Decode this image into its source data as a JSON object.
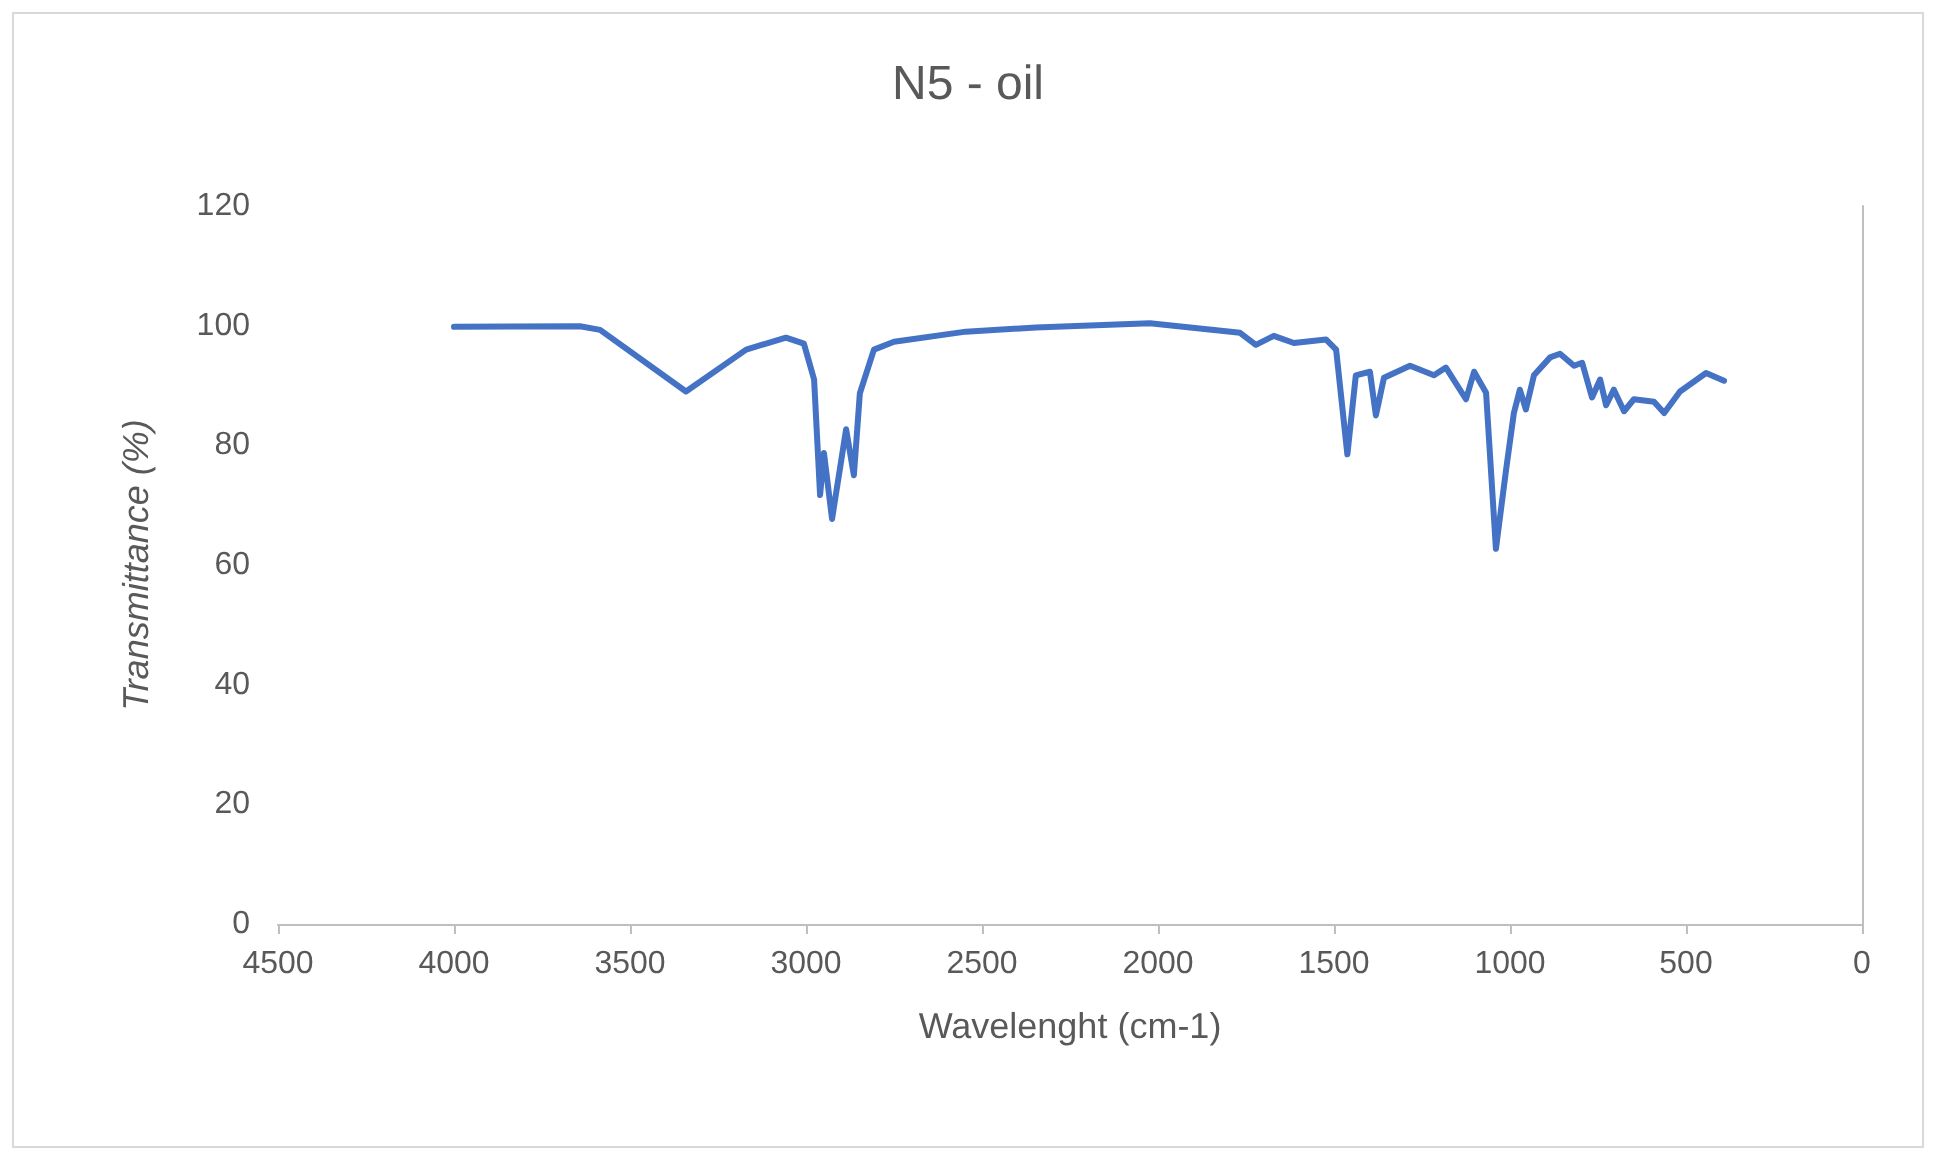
{
  "chart_data": {
    "type": "line",
    "title": "N5 - oil",
    "xlabel": "Wavelenght (cm-1)",
    "ylabel": "Transmittance (%)",
    "xlim": [
      4500,
      0
    ],
    "xticks": [
      4500,
      4000,
      3500,
      3000,
      2500,
      2000,
      1500,
      1000,
      500,
      0
    ],
    "ylim": [
      0,
      120
    ],
    "yticks": [
      0,
      20,
      40,
      60,
      80,
      100,
      120
    ],
    "grid": false,
    "marker": "none",
    "line_style": "solid",
    "series": [
      {
        "color": "#4472c4",
        "x": [
          4000,
          3642,
          3585,
          3341,
          3170,
          3057,
          3006,
          2977,
          2960,
          2949,
          2926,
          2886,
          2864,
          2847,
          2807,
          2750,
          2546,
          2347,
          2023,
          1767,
          1722,
          1671,
          1614,
          1523,
          1494,
          1462,
          1438,
          1398,
          1381,
          1358,
          1284,
          1216,
          1182,
          1125,
          1102,
          1068,
          1040,
          1011,
          989,
          972,
          955,
          932,
          886,
          858,
          818,
          795,
          767,
          744,
          727,
          705,
          676,
          648,
          591,
          562,
          517,
          443,
          392
        ],
        "values": [
          99.8,
          99.9,
          99.3,
          89,
          96,
          98,
          97,
          91,
          71.7,
          78.7,
          67.7,
          82.7,
          75,
          88.7,
          96,
          97.3,
          99,
          99.7,
          100.4,
          98.8,
          96.8,
          98.3,
          97.1,
          97.7,
          96,
          78.5,
          91.7,
          92.3,
          85,
          91.3,
          93.3,
          91.7,
          93,
          87.7,
          92.3,
          88.8,
          62.7,
          76,
          85.4,
          89.3,
          86,
          91.7,
          94.7,
          95.3,
          93.3,
          93.8,
          88,
          91,
          86.7,
          89.3,
          85.7,
          87.7,
          87.3,
          85.4,
          89,
          92.1,
          90.8
        ]
      }
    ]
  }
}
